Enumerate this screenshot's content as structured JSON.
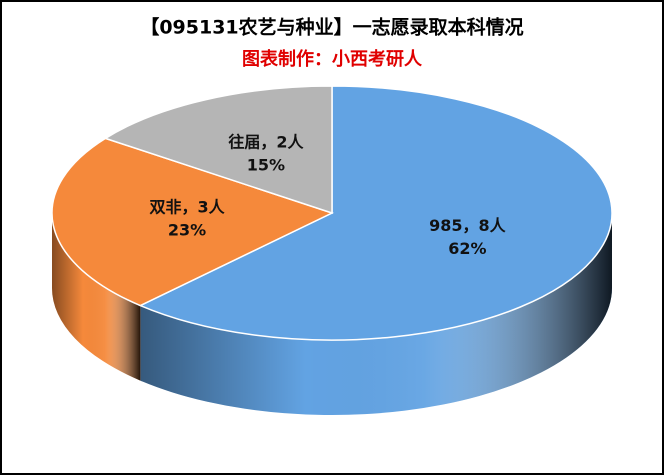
{
  "chart_data": {
    "type": "pie3d",
    "title": "【095131农艺与种业】一志愿录取本科情况",
    "subtitle": "图表制作：小西考研人",
    "categories": [
      "985，8人",
      "双非，3人",
      "往届，2人"
    ],
    "values": [
      62,
      23,
      15
    ],
    "value_labels": [
      "62%",
      "23%",
      "15%"
    ],
    "colors": [
      "#62a3e3",
      "#f5893b",
      "#b5b5b5"
    ],
    "start_angle": -90,
    "direction": "clockwise"
  }
}
